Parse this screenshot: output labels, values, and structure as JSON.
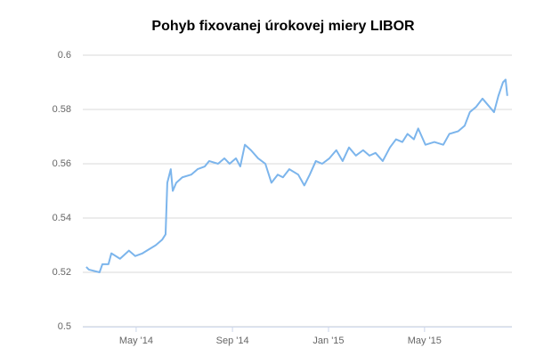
{
  "chart_data": {
    "type": "line",
    "title": "Pohyb fixovanej úrokovej miery LIBOR",
    "x": [
      2014.16,
      2014.169,
      2014.206,
      2014.216,
      2014.237,
      2014.247,
      2014.277,
      2014.308,
      2014.33,
      2014.355,
      2014.37,
      2014.401,
      2014.423,
      2014.435,
      2014.441,
      2014.453,
      2014.46,
      2014.472,
      2014.493,
      2014.524,
      2014.546,
      2014.571,
      2014.586,
      2014.617,
      2014.639,
      2014.657,
      2014.679,
      2014.694,
      2014.71,
      2014.731,
      2014.756,
      2014.781,
      2014.802,
      2014.824,
      2014.842,
      2014.864,
      2014.895,
      2014.916,
      2014.935,
      2014.956,
      2014.978,
      2015.003,
      2015.027,
      2015.049,
      2015.071,
      2015.095,
      2015.12,
      2015.142,
      2015.163,
      2015.188,
      2015.213,
      2015.234,
      2015.256,
      2015.274,
      2015.296,
      2015.311,
      2015.336,
      2015.367,
      2015.398,
      2015.419,
      2015.45,
      2015.472,
      2015.49,
      2015.512,
      2015.534,
      2015.558,
      2015.574,
      2015.589,
      2015.605,
      2015.614,
      2015.62
    ],
    "series": [
      {
        "color": "#7cb5ec",
        "values": [
          0.522,
          0.521,
          0.52,
          0.523,
          0.523,
          0.527,
          0.525,
          0.528,
          0.526,
          0.527,
          0.528,
          0.53,
          0.532,
          0.534,
          0.553,
          0.558,
          0.55,
          0.553,
          0.555,
          0.556,
          0.558,
          0.559,
          0.561,
          0.56,
          0.562,
          0.56,
          0.562,
          0.559,
          0.567,
          0.565,
          0.562,
          0.56,
          0.553,
          0.556,
          0.555,
          0.558,
          0.556,
          0.552,
          0.556,
          0.561,
          0.56,
          0.562,
          0.565,
          0.561,
          0.566,
          0.563,
          0.565,
          0.563,
          0.564,
          0.561,
          0.566,
          0.569,
          0.568,
          0.571,
          0.569,
          0.573,
          0.567,
          0.568,
          0.567,
          0.571,
          0.572,
          0.574,
          0.579,
          0.581,
          0.584,
          0.581,
          0.579,
          0.585,
          0.59,
          0.591,
          0.585
        ]
      }
    ],
    "xlim": [
      2014.148,
      2015.636
    ],
    "xticks": [
      {
        "value": 2014.333,
        "label": "May '14"
      },
      {
        "value": 2014.667,
        "label": "Sep '14"
      },
      {
        "value": 2015.0,
        "label": "Jan '15"
      },
      {
        "value": 2015.333,
        "label": "May '15"
      }
    ],
    "ylim": [
      0.5,
      0.6
    ],
    "yticks": [
      0.5,
      0.52,
      0.54,
      0.56,
      0.58,
      0.6
    ],
    "grid": true
  }
}
